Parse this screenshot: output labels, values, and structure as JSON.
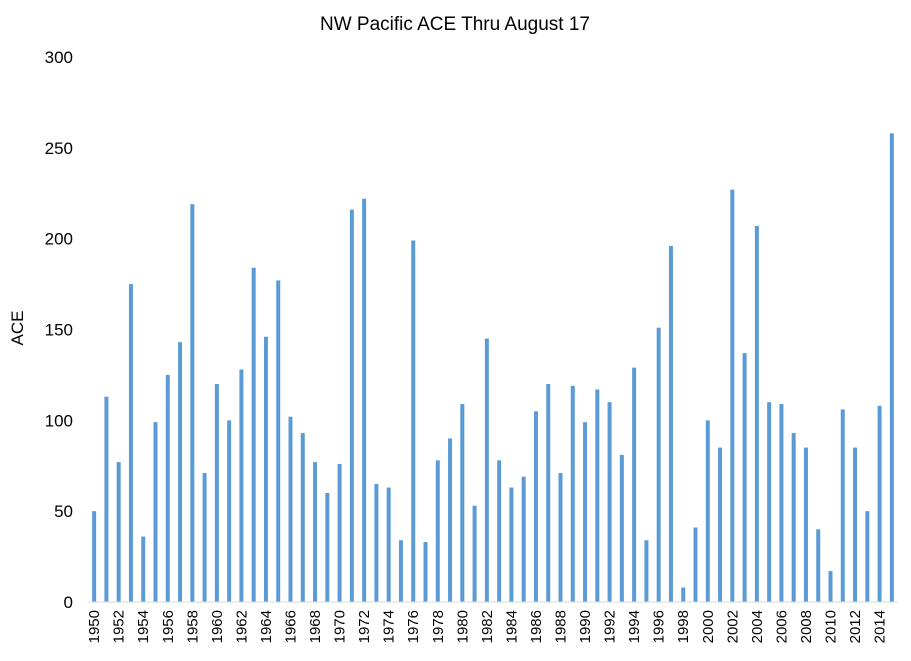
{
  "chart_data": {
    "type": "bar",
    "title": "NW Pacific ACE Thru August 17",
    "xlabel": "",
    "ylabel": "ACE",
    "ylim": [
      0,
      300
    ],
    "yticks": [
      0,
      50,
      100,
      150,
      200,
      250,
      300
    ],
    "grid": false,
    "legend": "none",
    "bar_color": "#5b9bd5",
    "categories": [
      "1950",
      "1951",
      "1952",
      "1953",
      "1954",
      "1955",
      "1956",
      "1957",
      "1958",
      "1959",
      "1960",
      "1961",
      "1962",
      "1963",
      "1964",
      "1965",
      "1966",
      "1967",
      "1968",
      "1969",
      "1970",
      "1971",
      "1972",
      "1973",
      "1974",
      "1975",
      "1976",
      "1977",
      "1978",
      "1979",
      "1980",
      "1981",
      "1982",
      "1983",
      "1984",
      "1985",
      "1986",
      "1987",
      "1988",
      "1989",
      "1990",
      "1991",
      "1992",
      "1993",
      "1994",
      "1995",
      "1996",
      "1997",
      "1998",
      "1999",
      "2000",
      "2001",
      "2002",
      "2003",
      "2004",
      "2005",
      "2006",
      "2007",
      "2008",
      "2009",
      "2010",
      "2011",
      "2012",
      "2013",
      "2014",
      "2015"
    ],
    "tick_labels": [
      "1950",
      "1952",
      "1954",
      "1956",
      "1958",
      "1960",
      "1962",
      "1964",
      "1966",
      "1968",
      "1970",
      "1972",
      "1974",
      "1976",
      "1978",
      "1980",
      "1982",
      "1984",
      "1986",
      "1988",
      "1990",
      "1992",
      "1994",
      "1996",
      "1998",
      "2000",
      "2002",
      "2004",
      "2006",
      "2008",
      "2010",
      "2012",
      "2014"
    ],
    "values": [
      50,
      113,
      77,
      175,
      36,
      99,
      125,
      143,
      219,
      71,
      120,
      100,
      128,
      184,
      146,
      177,
      102,
      93,
      77,
      60,
      76,
      216,
      222,
      65,
      63,
      34,
      199,
      33,
      78,
      90,
      109,
      53,
      145,
      78,
      63,
      69,
      105,
      120,
      71,
      119,
      99,
      117,
      110,
      81,
      129,
      34,
      151,
      196,
      8,
      41,
      100,
      85,
      227,
      137,
      207,
      110,
      109,
      93,
      85,
      40,
      17,
      106,
      85,
      50,
      108,
      258
    ]
  }
}
